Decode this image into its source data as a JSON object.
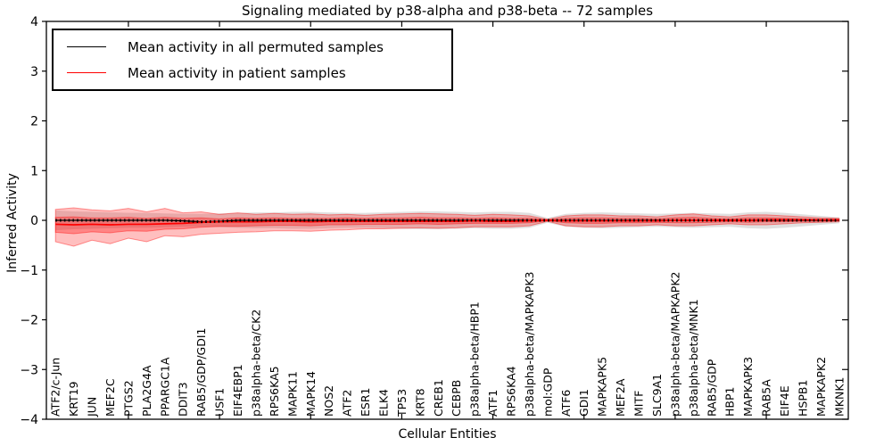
{
  "title": "Signaling mediated by p38-alpha and p38-beta -- 72 samples",
  "legend": [
    {
      "label": "Mean activity in all permuted samples",
      "color": "#000000"
    },
    {
      "label": "Mean activity in patient samples",
      "color": "#ff0000"
    }
  ],
  "chart_data": {
    "type": "area",
    "title": "Signaling mediated by p38-alpha and p38-beta -- 72 samples",
    "xlabel": "Cellular Entities",
    "ylabel": "Inferred Activity",
    "ylim": [
      -4,
      4
    ],
    "yticks": [
      -4,
      -3,
      -2,
      -1,
      0,
      1,
      2,
      3,
      4
    ],
    "xtick_positions": [
      5,
      10,
      15,
      20,
      25,
      30,
      35,
      40
    ],
    "grid": false,
    "legend_position": "upper left",
    "categories": [
      "ATF2/c-Jun",
      "KRT19",
      "JUN",
      "MEF2C",
      "PTGS2",
      "PLA2G4A",
      "PPARGC1A",
      "DDIT3",
      "RAB5/GDP/GDI1",
      "USF1",
      "EIF4EBP1",
      "p38alpha-beta/CK2",
      "RPS6KA5",
      "MAPK11",
      "MAPK14",
      "NOS2",
      "ATF2",
      "ESR1",
      "ELK4",
      "TP53",
      "KRT8",
      "CREB1",
      "CEBPB",
      "p38alpha-beta/HBP1",
      "ATF1",
      "RPS6KA4",
      "p38alpha-beta/MAPKAPK3",
      "mol:GDP",
      "ATF6",
      "GDI1",
      "MAPKAPK5",
      "MEF2A",
      "MITF",
      "SLC9A1",
      "p38alpha-beta/MAPKAPK2",
      "p38alpha-beta/MNK1",
      "RAB5/GDP",
      "HBP1",
      "MAPKAPK3",
      "RAB5A",
      "EIF4E",
      "HSPB1",
      "MAPKAPK2",
      "MKNK1"
    ],
    "series": [
      {
        "name": "Mean activity in all permuted samples",
        "color": "#000000",
        "values": [
          0,
          0,
          0,
          0,
          0,
          0,
          0,
          -0.01,
          -0.03,
          -0.02,
          0,
          0,
          0,
          0,
          0,
          0,
          0,
          0,
          0,
          0,
          0,
          0,
          0,
          0,
          0,
          0,
          0,
          0,
          0,
          0,
          0,
          0,
          0,
          0,
          0,
          0,
          0,
          0,
          0,
          0,
          0,
          0,
          0,
          0
        ]
      },
      {
        "name": "Mean activity in patient samples",
        "color": "#ff0000",
        "values": [
          -0.08,
          -0.09,
          -0.08,
          -0.09,
          -0.08,
          -0.08,
          -0.07,
          -0.06,
          -0.04,
          -0.03,
          -0.03,
          -0.03,
          -0.02,
          -0.02,
          -0.03,
          -0.02,
          -0.02,
          -0.02,
          -0.02,
          -0.02,
          -0.02,
          -0.02,
          -0.02,
          -0.01,
          -0.02,
          -0.02,
          -0.01,
          0.0,
          -0.01,
          -0.01,
          -0.01,
          -0.01,
          -0.01,
          -0.01,
          0.0,
          0.0,
          0.0,
          0.0,
          0.0,
          0.01,
          0.01,
          0.01,
          0.01,
          0.01
        ]
      }
    ],
    "bands": [
      {
        "name": "permuted-std-band",
        "color": "#000000",
        "opacity": 0.12,
        "hi": [
          0.2,
          0.18,
          0.17,
          0.16,
          0.15,
          0.15,
          0.14,
          0.13,
          0.13,
          0.14,
          0.15,
          0.16,
          0.16,
          0.17,
          0.17,
          0.16,
          0.15,
          0.15,
          0.16,
          0.17,
          0.18,
          0.18,
          0.17,
          0.16,
          0.17,
          0.17,
          0.15,
          0.05,
          0.13,
          0.15,
          0.16,
          0.15,
          0.14,
          0.13,
          0.14,
          0.15,
          0.14,
          0.13,
          0.16,
          0.17,
          0.15,
          0.12,
          0.09,
          0.06
        ],
        "lo": [
          -0.2,
          -0.18,
          -0.17,
          -0.16,
          -0.15,
          -0.15,
          -0.14,
          -0.13,
          -0.13,
          -0.14,
          -0.15,
          -0.16,
          -0.16,
          -0.17,
          -0.17,
          -0.16,
          -0.15,
          -0.15,
          -0.16,
          -0.17,
          -0.18,
          -0.18,
          -0.17,
          -0.16,
          -0.17,
          -0.17,
          -0.15,
          -0.05,
          -0.13,
          -0.15,
          -0.16,
          -0.15,
          -0.14,
          -0.13,
          -0.14,
          -0.15,
          -0.14,
          -0.13,
          -0.16,
          -0.17,
          -0.15,
          -0.12,
          -0.09,
          -0.06
        ]
      },
      {
        "name": "patient-outer-band",
        "color": "#ff0000",
        "opacity": 0.25,
        "hi": [
          0.22,
          0.25,
          0.21,
          0.19,
          0.24,
          0.17,
          0.24,
          0.15,
          0.17,
          0.12,
          0.15,
          0.12,
          0.14,
          0.12,
          0.13,
          0.11,
          0.12,
          0.1,
          0.12,
          0.13,
          0.14,
          0.13,
          0.12,
          0.1,
          0.12,
          0.11,
          0.09,
          0.02,
          0.09,
          0.11,
          0.11,
          0.09,
          0.09,
          0.07,
          0.11,
          0.13,
          0.09,
          0.07,
          0.11,
          0.11,
          0.09,
          0.07,
          0.05,
          0.04
        ],
        "lo": [
          -0.43,
          -0.52,
          -0.4,
          -0.47,
          -0.36,
          -0.43,
          -0.31,
          -0.33,
          -0.28,
          -0.26,
          -0.24,
          -0.23,
          -0.21,
          -0.21,
          -0.22,
          -0.2,
          -0.19,
          -0.17,
          -0.17,
          -0.16,
          -0.15,
          -0.16,
          -0.15,
          -0.13,
          -0.13,
          -0.13,
          -0.11,
          -0.02,
          -0.11,
          -0.13,
          -0.13,
          -0.11,
          -0.11,
          -0.09,
          -0.11,
          -0.11,
          -0.09,
          -0.07,
          -0.09,
          -0.09,
          -0.07,
          -0.05,
          -0.04,
          -0.03
        ]
      },
      {
        "name": "patient-inner-band",
        "color": "#ff0000",
        "opacity": 0.3,
        "hi": [
          0.06,
          0.07,
          0.05,
          0.05,
          0.06,
          0.04,
          0.06,
          0.04,
          0.05,
          0.03,
          0.05,
          0.04,
          0.05,
          0.04,
          0.04,
          0.04,
          0.05,
          0.04,
          0.05,
          0.05,
          0.06,
          0.05,
          0.05,
          0.04,
          0.05,
          0.04,
          0.04,
          0.01,
          0.04,
          0.05,
          0.05,
          0.04,
          0.04,
          0.03,
          0.05,
          0.06,
          0.04,
          0.03,
          0.05,
          0.05,
          0.04,
          0.03,
          0.02,
          0.02
        ],
        "lo": [
          -0.24,
          -0.27,
          -0.23,
          -0.25,
          -0.21,
          -0.22,
          -0.18,
          -0.17,
          -0.14,
          -0.12,
          -0.12,
          -0.11,
          -0.1,
          -0.1,
          -0.11,
          -0.09,
          -0.09,
          -0.08,
          -0.08,
          -0.08,
          -0.07,
          -0.08,
          -0.07,
          -0.06,
          -0.06,
          -0.06,
          -0.05,
          -0.01,
          -0.05,
          -0.06,
          -0.06,
          -0.05,
          -0.05,
          -0.04,
          -0.05,
          -0.05,
          -0.04,
          -0.03,
          -0.04,
          -0.03,
          -0.03,
          -0.02,
          -0.02,
          -0.01
        ]
      }
    ]
  }
}
